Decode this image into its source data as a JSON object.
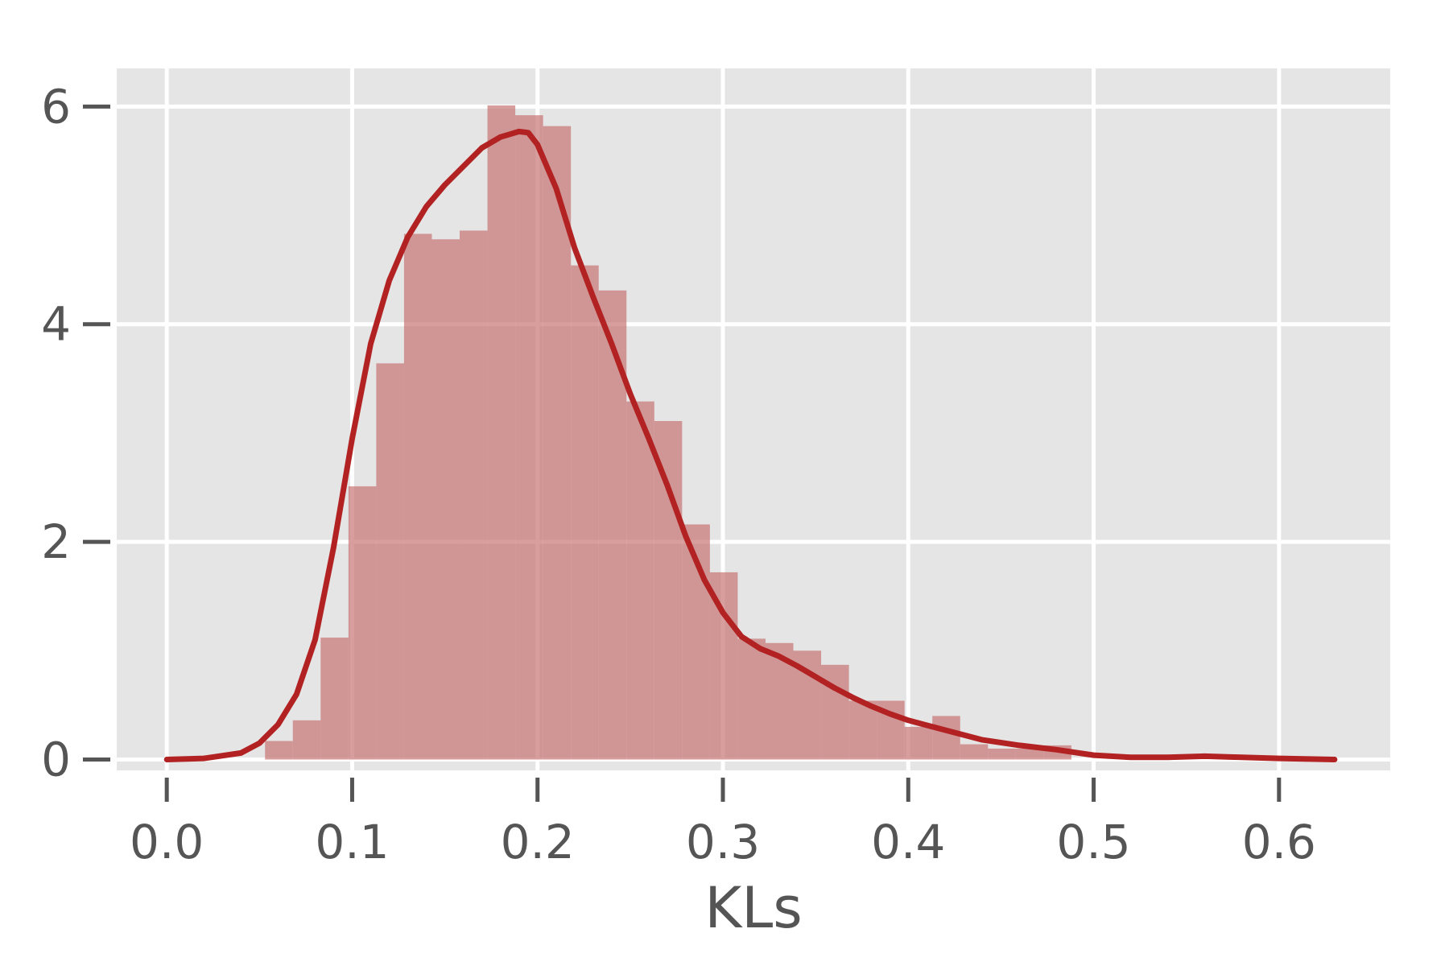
{
  "chart_data": {
    "type": "bar",
    "subtype": "histogram-with-kde",
    "title": "",
    "xlabel": "KLs",
    "ylabel": "",
    "xlim": [
      -0.027,
      0.66
    ],
    "ylim": [
      -0.1,
      6.35
    ],
    "x_ticks": [
      0.0,
      0.1,
      0.2,
      0.3,
      0.4,
      0.5,
      0.6
    ],
    "x_tick_labels": [
      "0.0",
      "0.1",
      "0.2",
      "0.3",
      "0.4",
      "0.5",
      "0.6"
    ],
    "y_ticks": [
      0,
      2,
      4,
      6
    ],
    "y_tick_labels": [
      "0",
      "2",
      "4",
      "6"
    ],
    "grid": true,
    "background_color": "#e5e5e5",
    "grid_color": "#ffffff",
    "histogram": {
      "color": "#c77474",
      "opacity": 0.7,
      "bin_width": 0.015,
      "bins": [
        {
          "x0": 0.053,
          "value": 0.17
        },
        {
          "x0": 0.068,
          "value": 0.36
        },
        {
          "x0": 0.083,
          "value": 1.12
        },
        {
          "x0": 0.098,
          "value": 2.51
        },
        {
          "x0": 0.113,
          "value": 3.64
        },
        {
          "x0": 0.128,
          "value": 4.83
        },
        {
          "x0": 0.143,
          "value": 4.78
        },
        {
          "x0": 0.158,
          "value": 4.86
        },
        {
          "x0": 0.173,
          "value": 6.01
        },
        {
          "x0": 0.188,
          "value": 5.92
        },
        {
          "x0": 0.203,
          "value": 5.82
        },
        {
          "x0": 0.218,
          "value": 4.54
        },
        {
          "x0": 0.233,
          "value": 4.31
        },
        {
          "x0": 0.248,
          "value": 3.29
        },
        {
          "x0": 0.263,
          "value": 3.11
        },
        {
          "x0": 0.278,
          "value": 2.16
        },
        {
          "x0": 0.293,
          "value": 1.72
        },
        {
          "x0": 0.308,
          "value": 1.11
        },
        {
          "x0": 0.323,
          "value": 1.07
        },
        {
          "x0": 0.338,
          "value": 1.0
        },
        {
          "x0": 0.353,
          "value": 0.87
        },
        {
          "x0": 0.368,
          "value": 0.54
        },
        {
          "x0": 0.383,
          "value": 0.54
        },
        {
          "x0": 0.398,
          "value": 0.3
        },
        {
          "x0": 0.413,
          "value": 0.4
        },
        {
          "x0": 0.428,
          "value": 0.14
        },
        {
          "x0": 0.443,
          "value": 0.1
        },
        {
          "x0": 0.458,
          "value": 0.1
        },
        {
          "x0": 0.473,
          "value": 0.13
        }
      ]
    },
    "kde": {
      "color": "#b22222",
      "x": [
        0.0,
        0.02,
        0.04,
        0.05,
        0.06,
        0.07,
        0.08,
        0.09,
        0.1,
        0.11,
        0.12,
        0.13,
        0.14,
        0.15,
        0.16,
        0.17,
        0.18,
        0.19,
        0.195,
        0.2,
        0.21,
        0.22,
        0.23,
        0.24,
        0.25,
        0.26,
        0.27,
        0.28,
        0.29,
        0.3,
        0.31,
        0.32,
        0.33,
        0.34,
        0.35,
        0.36,
        0.37,
        0.38,
        0.39,
        0.4,
        0.42,
        0.44,
        0.46,
        0.48,
        0.5,
        0.52,
        0.54,
        0.56,
        0.58,
        0.6,
        0.63
      ],
      "y": [
        0.0,
        0.01,
        0.06,
        0.15,
        0.32,
        0.6,
        1.1,
        1.95,
        2.95,
        3.82,
        4.4,
        4.8,
        5.08,
        5.28,
        5.45,
        5.62,
        5.72,
        5.77,
        5.76,
        5.65,
        5.25,
        4.7,
        4.25,
        3.82,
        3.36,
        2.95,
        2.52,
        2.05,
        1.65,
        1.35,
        1.13,
        1.02,
        0.95,
        0.86,
        0.76,
        0.66,
        0.57,
        0.49,
        0.42,
        0.36,
        0.27,
        0.18,
        0.13,
        0.09,
        0.04,
        0.02,
        0.02,
        0.03,
        0.02,
        0.01,
        0.0
      ]
    }
  }
}
